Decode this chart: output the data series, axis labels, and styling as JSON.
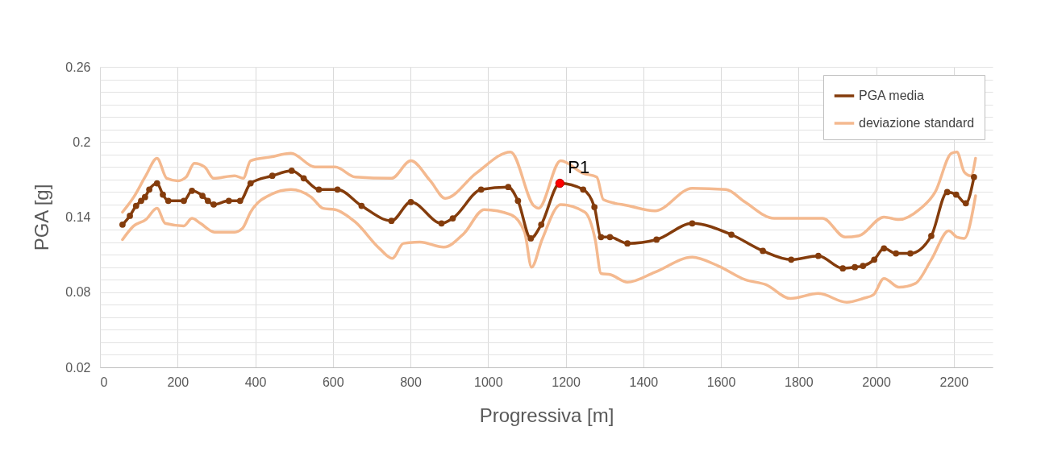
{
  "chart_data": {
    "type": "line",
    "xlabel": "Progressiva [m]",
    "ylabel": "PGA [g]",
    "xlim": [
      0,
      2300
    ],
    "xticks": [
      0,
      200,
      400,
      600,
      800,
      1000,
      1200,
      1400,
      1600,
      1800,
      2000,
      2200
    ],
    "ylim": [
      0.02,
      0.26
    ],
    "yticks": [
      0.02,
      {
        "value": 0.03,
        "label": null
      },
      {
        "value": 0.04,
        "label": null
      },
      {
        "value": 0.05,
        "label": null
      },
      {
        "value": 0.06,
        "label": null
      },
      {
        "value": 0.07,
        "label": null
      },
      0.08,
      {
        "value": 0.09,
        "label": null
      },
      {
        "value": 0.1,
        "label": null
      },
      {
        "value": 0.11,
        "label": null
      },
      {
        "value": 0.12,
        "label": null
      },
      {
        "value": 0.13,
        "label": null
      },
      0.14,
      {
        "value": 0.15,
        "label": null
      },
      {
        "value": 0.16,
        "label": null
      },
      {
        "value": 0.17,
        "label": null
      },
      {
        "value": 0.18,
        "label": null
      },
      {
        "value": 0.19,
        "label": null
      },
      0.2,
      {
        "value": 0.21,
        "label": null
      },
      {
        "value": 0.22,
        "label": null
      },
      {
        "value": 0.23,
        "label": null
      },
      {
        "value": 0.24,
        "label": null
      },
      {
        "value": 0.25,
        "label": null
      },
      0.26
    ],
    "grid": true,
    "legend": "top right",
    "marker": "circle",
    "line_style": "solid",
    "annotations": [
      {
        "text": "P1",
        "x": 1185,
        "y": 0.167
      }
    ],
    "series": [
      {
        "name": "PGA media",
        "color": "#843c0c",
        "x": [
          58,
          77,
          93,
          106,
          116,
          127,
          147,
          162,
          176,
          216,
          237,
          264,
          278,
          293,
          332,
          361,
          388,
          444,
          494,
          525,
          564,
          612,
          674,
          751,
          801,
          880,
          909,
          982,
          1052,
          1077,
          1110,
          1137,
          1185,
          1245,
          1274,
          1291,
          1314,
          1359,
          1434,
          1526,
          1627,
          1708,
          1781,
          1851,
          1914,
          1945,
          1966,
          1995,
          2020,
          2051,
          2088,
          2142,
          2183,
          2206,
          2231,
          2252
        ],
        "values": [
          0.134,
          0.141,
          0.149,
          0.153,
          0.156,
          0.162,
          0.167,
          0.158,
          0.153,
          0.153,
          0.161,
          0.157,
          0.153,
          0.15,
          0.153,
          0.153,
          0.167,
          0.173,
          0.177,
          0.171,
          0.162,
          0.162,
          0.149,
          0.137,
          0.152,
          0.135,
          0.139,
          0.162,
          0.164,
          0.153,
          0.123,
          0.134,
          0.167,
          0.162,
          0.148,
          0.124,
          0.124,
          0.119,
          0.122,
          0.135,
          0.126,
          0.113,
          0.106,
          0.109,
          0.099,
          0.1,
          0.101,
          0.106,
          0.115,
          0.111,
          0.111,
          0.125,
          0.16,
          0.158,
          0.151,
          0.172
        ]
      },
      {
        "name": "deviazione standard",
        "color": "#f4b98f",
        "marker": "none",
        "x": [
          58,
          87,
          118,
          147,
          172,
          201,
          222,
          243,
          270,
          293,
          347,
          369,
          388,
          440,
          492,
          554,
          606,
          658,
          751,
          801,
          851,
          890,
          969,
          1058,
          1118,
          1130,
          1187,
          1245,
          1280,
          1297,
          1363,
          1430,
          1526,
          1613,
          1662,
          1737,
          1862,
          1920,
          1955,
          2020,
          2059,
          2111,
          2152,
          2194,
          2208,
          2227,
          2244,
          2256
        ],
        "values": [
          0.144,
          0.156,
          0.173,
          0.187,
          0.171,
          0.169,
          0.172,
          0.183,
          0.18,
          0.171,
          0.173,
          0.171,
          0.185,
          0.188,
          0.191,
          0.18,
          0.18,
          0.172,
          0.171,
          0.185,
          0.169,
          0.155,
          0.175,
          0.192,
          0.149,
          0.147,
          0.185,
          0.175,
          0.172,
          0.154,
          0.149,
          0.145,
          0.163,
          0.162,
          0.152,
          0.139,
          0.139,
          0.124,
          0.125,
          0.14,
          0.138,
          0.146,
          0.16,
          0.191,
          0.192,
          0.176,
          0.173,
          0.187
        ]
      },
      {
        "color": "#f4b98f",
        "marker": "none",
        "x": [
          58,
          87,
          118,
          147,
          168,
          216,
          237,
          259,
          295,
          347,
          367,
          388,
          440,
          492,
          544,
          575,
          606,
          658,
          720,
          753,
          782,
          824,
          886,
          938,
          990,
          1058,
          1094,
          1112,
          1139,
          1187,
          1249,
          1276,
          1291,
          1316,
          1359,
          1430,
          1526,
          1593,
          1662,
          1716,
          1779,
          1851,
          1924,
          1966,
          1993,
          2020,
          2059,
          2101,
          2142,
          2187,
          2208,
          2227,
          2256
        ],
        "values": [
          0.122,
          0.133,
          0.138,
          0.147,
          0.135,
          0.133,
          0.139,
          0.135,
          0.128,
          0.128,
          0.131,
          0.144,
          0.158,
          0.162,
          0.156,
          0.147,
          0.146,
          0.136,
          0.115,
          0.107,
          0.119,
          0.12,
          0.116,
          0.127,
          0.146,
          0.142,
          0.128,
          0.1,
          0.122,
          0.15,
          0.144,
          0.122,
          0.095,
          0.094,
          0.088,
          0.096,
          0.108,
          0.101,
          0.09,
          0.086,
          0.075,
          0.079,
          0.072,
          0.075,
          0.078,
          0.091,
          0.084,
          0.087,
          0.106,
          0.129,
          0.124,
          0.123,
          0.157
        ]
      }
    ]
  }
}
